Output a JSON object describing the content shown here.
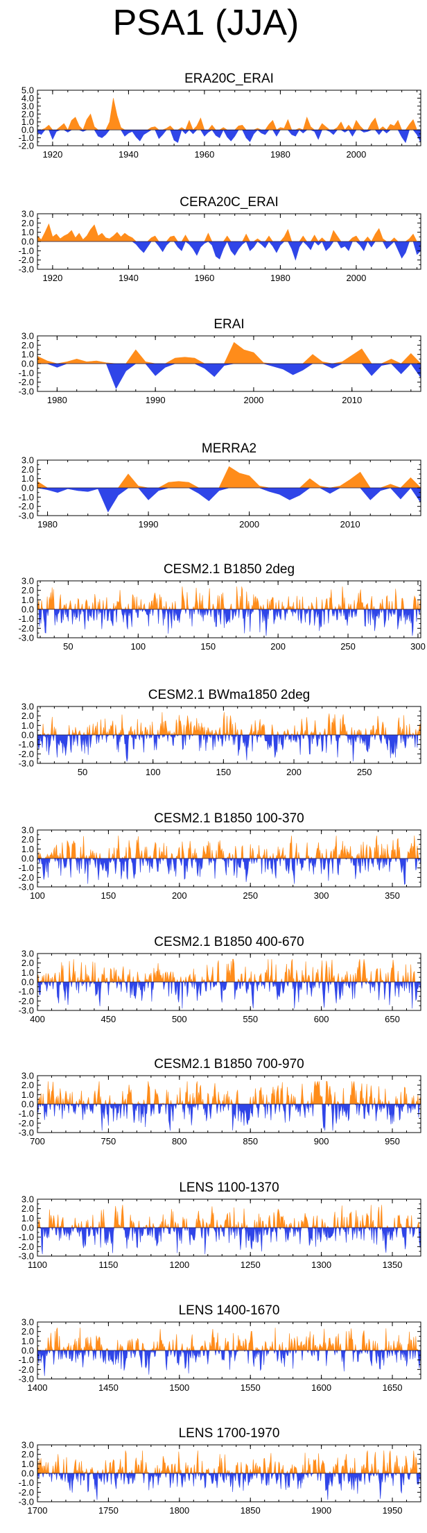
{
  "figure": {
    "title": "PSA1 (JJA)"
  },
  "colors": {
    "positive": "#ff8c1a",
    "negative": "#2f45e8",
    "axis": "#000000"
  },
  "chart_data": [
    {
      "type": "area",
      "title": "ERA20C_ERAI",
      "xlim": [
        1916,
        2017
      ],
      "ylim": [
        -2.0,
        5.0
      ],
      "yticks": [
        5.0,
        4.0,
        3.0,
        2.0,
        1.0,
        0.0,
        -1.0,
        -2.0
      ],
      "ytick_labels": [
        "5.0",
        "4.0",
        "3.0",
        "2.0",
        "1.0",
        "0.0",
        "-1.0",
        "-2.0"
      ],
      "xticks": [
        1920,
        1940,
        1960,
        1980,
        2000
      ],
      "xtick_labels": [
        "1920",
        "1940",
        "1960",
        "1980",
        "2000"
      ],
      "step": 1,
      "seed": 11,
      "values": [
        -0.3,
        -0.6,
        0.2,
        0.6,
        -1.2,
        -0.2,
        0.4,
        0.8,
        -0.3,
        1.2,
        1.6,
        0.5,
        -0.2,
        1.3,
        2.0,
        0.4,
        -0.8,
        -1.0,
        -0.6,
        1.0,
        4.0,
        1.8,
        0.3,
        -0.8,
        -0.4,
        -0.2,
        -0.9,
        -1.4,
        -0.6,
        -0.3,
        0.3,
        0.4,
        -1.1,
        -0.6,
        0.2,
        0.5,
        -1.3,
        -1.6,
        0.3,
        -0.5,
        1.2,
        -0.5,
        0.5,
        1.5,
        -0.8,
        -0.3,
        0.6,
        -0.7,
        -1.0,
        0.3,
        -0.9,
        -1.4,
        -0.8,
        0.5,
        0.6,
        -1.0,
        -1.5,
        -0.5,
        0.2,
        -0.4,
        -0.6,
        0.7,
        1.2,
        -0.8,
        0.3,
        0.2,
        1.3,
        -0.6,
        -0.8,
        0.2,
        -0.4,
        1.6,
        0.4,
        -0.2,
        -1.2,
        0.8,
        0.4,
        -0.2,
        -0.6,
        0.3,
        1.0,
        -0.3,
        0.6,
        -0.8,
        1.2,
        0.5,
        -0.3,
        -0.2,
        0.9,
        1.5,
        -0.6,
        0.4,
        -0.4,
        0.7,
        0.5,
        1.2,
        -0.9,
        -1.6,
        0.7,
        1.3,
        -0.6,
        -1.6
      ]
    },
    {
      "type": "area",
      "title": "CERA20C_ERAI",
      "xlim": [
        1916,
        2017
      ],
      "ylim": [
        -3.0,
        3.0
      ],
      "yticks": [
        3.0,
        2.0,
        1.0,
        0.0,
        -1.0,
        -2.0,
        -3.0
      ],
      "ytick_labels": [
        "3.0",
        "2.0",
        "1.0",
        "0.0",
        "-1.0",
        "-2.0",
        "-3.0"
      ],
      "xticks": [
        1920,
        1940,
        1960,
        1980,
        2000
      ],
      "xtick_labels": [
        "1920",
        "1940",
        "1960",
        "1980",
        "2000"
      ],
      "step": 1,
      "seed": 23,
      "values": [
        0.6,
        0.2,
        1.0,
        1.9,
        0.5,
        0.8,
        0.3,
        0.6,
        0.8,
        1.2,
        0.4,
        0.9,
        0.2,
        0.6,
        1.3,
        1.8,
        0.6,
        0.9,
        0.4,
        0.3,
        0.6,
        1.0,
        0.5,
        0.9,
        0.6,
        0.4,
        -0.3,
        -0.8,
        -1.2,
        -0.6,
        0.4,
        0.6,
        -0.5,
        -1.1,
        -0.4,
        0.5,
        0.6,
        -0.6,
        -1.0,
        0.7,
        -0.3,
        -0.8,
        -1.5,
        -0.6,
        -0.2,
        0.9,
        -0.4,
        -1.6,
        -1.9,
        -0.8,
        0.6,
        -1.0,
        -1.5,
        -0.8,
        -0.3,
        0.8,
        -1.0,
        -0.6,
        0.3,
        -0.3,
        -0.7,
        0.6,
        -0.5,
        -1.2,
        -0.4,
        0.5,
        1.3,
        -0.8,
        -2.0,
        -0.6,
        0.6,
        -0.4,
        -0.9,
        0.7,
        -0.4,
        0.4,
        -1.0,
        -0.6,
        1.2,
        0.6,
        -0.7,
        -0.5,
        -1.0,
        0.4,
        0.6,
        -0.4,
        -1.0,
        0.5,
        -0.6,
        0.8,
        1.4,
        0.3,
        -0.8,
        -0.4,
        0.4,
        -0.9,
        -1.8,
        -1.2,
        0.3,
        0.8,
        -1.4,
        -1.0
      ]
    },
    {
      "type": "area",
      "title": "ERAI",
      "xlim": [
        1978,
        2017
      ],
      "ylim": [
        -3.0,
        3.0
      ],
      "yticks": [
        3.0,
        2.0,
        1.0,
        0.0,
        -1.0,
        -2.0,
        -3.0
      ],
      "ytick_labels": [
        "3.0",
        "2.0",
        "1.0",
        "0.0",
        "-1.0",
        "-2.0",
        "-3.0"
      ],
      "xticks": [
        1980,
        1990,
        2000,
        2010
      ],
      "xtick_labels": [
        "1980",
        "1990",
        "2000",
        "2010"
      ],
      "step": 1,
      "seed": 31,
      "values": [
        0.8,
        0.3,
        -0.4,
        0.2,
        0.5,
        0.2,
        0.3,
        0.1,
        -2.7,
        -0.8,
        1.5,
        0.2,
        -1.3,
        -0.4,
        0.6,
        0.7,
        0.6,
        -0.5,
        -1.4,
        -0.2,
        2.3,
        1.5,
        1.2,
        0.1,
        -0.3,
        -0.6,
        -1.2,
        -0.7,
        1.0,
        0.2,
        -0.5,
        0.2,
        0.9,
        1.6,
        -1.3,
        -0.2,
        0.5,
        -1.1,
        1.1,
        -1.5
      ]
    },
    {
      "type": "area",
      "title": "MERRA2",
      "xlim": [
        1979,
        2017
      ],
      "ylim": [
        -3.0,
        3.0
      ],
      "yticks": [
        3.0,
        2.0,
        1.0,
        0.0,
        -1.0,
        -2.0,
        -3.0
      ],
      "ytick_labels": [
        "3.0",
        "2.0",
        "1.0",
        "0.0",
        "-1.0",
        "-2.0",
        "-3.0"
      ],
      "xticks": [
        1980,
        1990,
        2000,
        2010
      ],
      "xtick_labels": [
        "1980",
        "1990",
        "2000",
        "2010"
      ],
      "step": 1,
      "seed": 37,
      "values": [
        0.7,
        -0.2,
        -0.5,
        -0.1,
        -0.3,
        -0.4,
        -0.1,
        -2.6,
        -0.8,
        1.5,
        0.2,
        -1.3,
        -0.3,
        0.6,
        0.7,
        0.6,
        -0.6,
        -1.4,
        -0.3,
        2.3,
        1.6,
        1.3,
        0.2,
        -0.4,
        -0.7,
        -1.3,
        -0.8,
        1.0,
        0.2,
        -0.6,
        0.2,
        0.9,
        1.7,
        -1.3,
        -0.3,
        0.4,
        -1.2,
        1.1,
        -1.6
      ]
    },
    {
      "type": "area",
      "title": "CESM2.1 B1850 2deg",
      "xlim": [
        28,
        302
      ],
      "ylim": [
        -3.0,
        3.0
      ],
      "yticks": [
        3.0,
        2.0,
        1.0,
        0.0,
        -1.0,
        -2.0,
        -3.0
      ],
      "ytick_labels": [
        "3.0",
        "2.0",
        "1.0",
        "0.0",
        "-1.0",
        "-2.0",
        "-3.0"
      ],
      "xticks": [
        50,
        100,
        150,
        200,
        250,
        300
      ],
      "xtick_labels": [
        "50",
        "100",
        "150",
        "200",
        "250",
        "300"
      ],
      "step": 0.5,
      "seed": 101,
      "values": null
    },
    {
      "type": "area",
      "title": "CESM2.1 BWma1850 2deg",
      "xlim": [
        18,
        290
      ],
      "ylim": [
        -3.0,
        3.0
      ],
      "yticks": [
        3.0,
        2.0,
        1.0,
        0.0,
        -1.0,
        -2.0,
        -3.0
      ],
      "ytick_labels": [
        "3.0",
        "2.0",
        "1.0",
        "0.0",
        "-1.0",
        "-2.0",
        "-3.0"
      ],
      "xticks": [
        50,
        100,
        150,
        200,
        250
      ],
      "xtick_labels": [
        "50",
        "100",
        "150",
        "200",
        "250"
      ],
      "step": 0.5,
      "seed": 202,
      "values": null
    },
    {
      "type": "area",
      "title": "CESM2.1 B1850 100-370",
      "xlim": [
        100,
        370
      ],
      "ylim": [
        -3.0,
        3.0
      ],
      "yticks": [
        3.0,
        2.0,
        1.0,
        0.0,
        -1.0,
        -2.0,
        -3.0
      ],
      "ytick_labels": [
        "3.0",
        "2.0",
        "1.0",
        "0.0",
        "-1.0",
        "-2.0",
        "-3.0"
      ],
      "xticks": [
        100,
        150,
        200,
        250,
        300,
        350
      ],
      "xtick_labels": [
        "100",
        "150",
        "200",
        "250",
        "300",
        "350"
      ],
      "step": 0.5,
      "seed": 303,
      "values": null
    },
    {
      "type": "area",
      "title": "CESM2.1 B1850 400-670",
      "xlim": [
        400,
        670
      ],
      "ylim": [
        -3.0,
        3.0
      ],
      "yticks": [
        3.0,
        2.0,
        1.0,
        0.0,
        -1.0,
        -2.0,
        -3.0
      ],
      "ytick_labels": [
        "3.0",
        "2.0",
        "1.0",
        "0.0",
        "-1.0",
        "-2.0",
        "-3.0"
      ],
      "xticks": [
        400,
        450,
        500,
        550,
        600,
        650
      ],
      "xtick_labels": [
        "400",
        "450",
        "500",
        "550",
        "600",
        "650"
      ],
      "step": 0.5,
      "seed": 404,
      "values": null
    },
    {
      "type": "area",
      "title": "CESM2.1 B1850 700-970",
      "xlim": [
        700,
        970
      ],
      "ylim": [
        -3.0,
        3.0
      ],
      "yticks": [
        3.0,
        2.0,
        1.0,
        0.0,
        -1.0,
        -2.0,
        -3.0
      ],
      "ytick_labels": [
        "3.0",
        "2.0",
        "1.0",
        "0.0",
        "-1.0",
        "-2.0",
        "-3.0"
      ],
      "xticks": [
        700,
        750,
        800,
        850,
        900,
        950
      ],
      "xtick_labels": [
        "700",
        "750",
        "800",
        "850",
        "900",
        "950"
      ],
      "step": 0.5,
      "seed": 505,
      "values": null
    },
    {
      "type": "area",
      "title": "LENS 1100-1370",
      "xlim": [
        1100,
        1370
      ],
      "ylim": [
        -3.0,
        3.0
      ],
      "yticks": [
        3.0,
        2.0,
        1.0,
        0.0,
        -1.0,
        -2.0,
        -3.0
      ],
      "ytick_labels": [
        "3.0",
        "2.0",
        "1.0",
        "0.0",
        "-1.0",
        "-2.0",
        "-3.0"
      ],
      "xticks": [
        1100,
        1150,
        1200,
        1250,
        1300,
        1350
      ],
      "xtick_labels": [
        "1100",
        "1150",
        "1200",
        "1250",
        "1300",
        "1350"
      ],
      "step": 0.5,
      "seed": 606,
      "values": null
    },
    {
      "type": "area",
      "title": "LENS 1400-1670",
      "xlim": [
        1400,
        1670
      ],
      "ylim": [
        -3.0,
        3.0
      ],
      "yticks": [
        3.0,
        2.0,
        1.0,
        0.0,
        -1.0,
        -2.0,
        -3.0
      ],
      "ytick_labels": [
        "3.0",
        "2.0",
        "1.0",
        "0.0",
        "-1.0",
        "-2.0",
        "-3.0"
      ],
      "xticks": [
        1400,
        1450,
        1500,
        1550,
        1600,
        1650
      ],
      "xtick_labels": [
        "1400",
        "1450",
        "1500",
        "1550",
        "1600",
        "1650"
      ],
      "step": 0.5,
      "seed": 707,
      "values": null
    },
    {
      "type": "area",
      "title": "LENS 1700-1970",
      "xlim": [
        1700,
        1970
      ],
      "ylim": [
        -3.0,
        3.0
      ],
      "yticks": [
        3.0,
        2.0,
        1.0,
        0.0,
        -1.0,
        -2.0,
        -3.0
      ],
      "ytick_labels": [
        "3.0",
        "2.0",
        "1.0",
        "0.0",
        "-1.0",
        "-2.0",
        "-3.0"
      ],
      "xticks": [
        1700,
        1750,
        1800,
        1850,
        1900,
        1950
      ],
      "xtick_labels": [
        "1700",
        "1750",
        "1800",
        "1850",
        "1900",
        "1950"
      ],
      "step": 0.5,
      "seed": 808,
      "values": null
    }
  ]
}
